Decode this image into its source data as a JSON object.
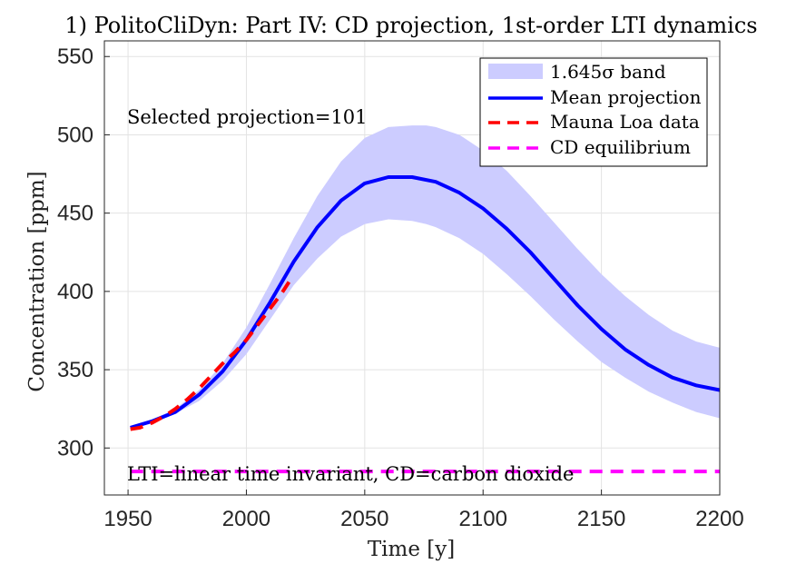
{
  "chart_data": {
    "type": "line",
    "title": "1) PolitoCliDyn: Part IV: CD projection, 1st-order LTI dynamics",
    "xlabel": "Time [y]",
    "ylabel": "Concentration [ppm]",
    "xlim": [
      1940,
      2200
    ],
    "ylim": [
      270,
      560
    ],
    "xticks": [
      1950,
      2000,
      2050,
      2100,
      2150,
      2200
    ],
    "yticks": [
      300,
      350,
      400,
      450,
      500,
      550
    ],
    "grid": true,
    "legend_position": "top-right",
    "annotations": [
      "Selected projection=101",
      "LTI=linear time invariant, CD=carbon dioxide"
    ],
    "series": [
      {
        "name": "1.645σ band",
        "kind": "band",
        "color": "#ccccff",
        "x": [
          1951,
          1960,
          1970,
          1980,
          1990,
          2000,
          2010,
          2020,
          2030,
          2040,
          2050,
          2060,
          2070,
          2076,
          2080,
          2090,
          2100,
          2110,
          2120,
          2130,
          2140,
          2150,
          2160,
          2170,
          2180,
          2190,
          2200
        ],
        "lower": [
          313,
          317,
          322,
          330,
          343,
          360,
          382,
          404,
          421,
          435,
          443,
          446,
          445,
          443,
          441,
          434,
          424,
          411,
          397,
          382,
          368,
          355,
          345,
          336,
          329,
          323,
          319
        ],
        "upper": [
          313,
          318,
          325,
          337,
          354,
          377,
          405,
          434,
          461,
          483,
          498,
          505,
          506,
          506,
          505,
          500,
          490,
          477,
          461,
          444,
          427,
          411,
          397,
          385,
          375,
          368,
          364
        ]
      },
      {
        "name": "Mean projection",
        "kind": "line",
        "color": "#0000ff",
        "x": [
          1951,
          1960,
          1970,
          1980,
          1990,
          2000,
          2010,
          2020,
          2030,
          2040,
          2050,
          2060,
          2070,
          2080,
          2090,
          2100,
          2110,
          2120,
          2130,
          2140,
          2150,
          2160,
          2170,
          2180,
          2190,
          2200
        ],
        "y": [
          313,
          317,
          323,
          334,
          349,
          369,
          393,
          419,
          441,
          458,
          469,
          473,
          473,
          470,
          463,
          453,
          440,
          425,
          408,
          391,
          376,
          363,
          353,
          345,
          340,
          337
        ]
      },
      {
        "name": "Mauna Loa data",
        "kind": "dashed",
        "color": "#ff0000",
        "x": [
          1951,
          1955,
          1960,
          1965,
          1970,
          1975,
          1980,
          1985,
          1990,
          1995,
          2000,
          2005,
          2010,
          2015,
          2018
        ],
        "y": [
          312,
          313,
          316,
          320,
          325,
          331,
          338,
          346,
          354,
          361,
          369,
          379,
          389,
          399,
          406
        ]
      },
      {
        "name": "CD equilibrium",
        "kind": "dashed",
        "color": "#ff00ff",
        "x": [
          1951,
          2200
        ],
        "y": [
          285,
          285
        ]
      }
    ]
  }
}
